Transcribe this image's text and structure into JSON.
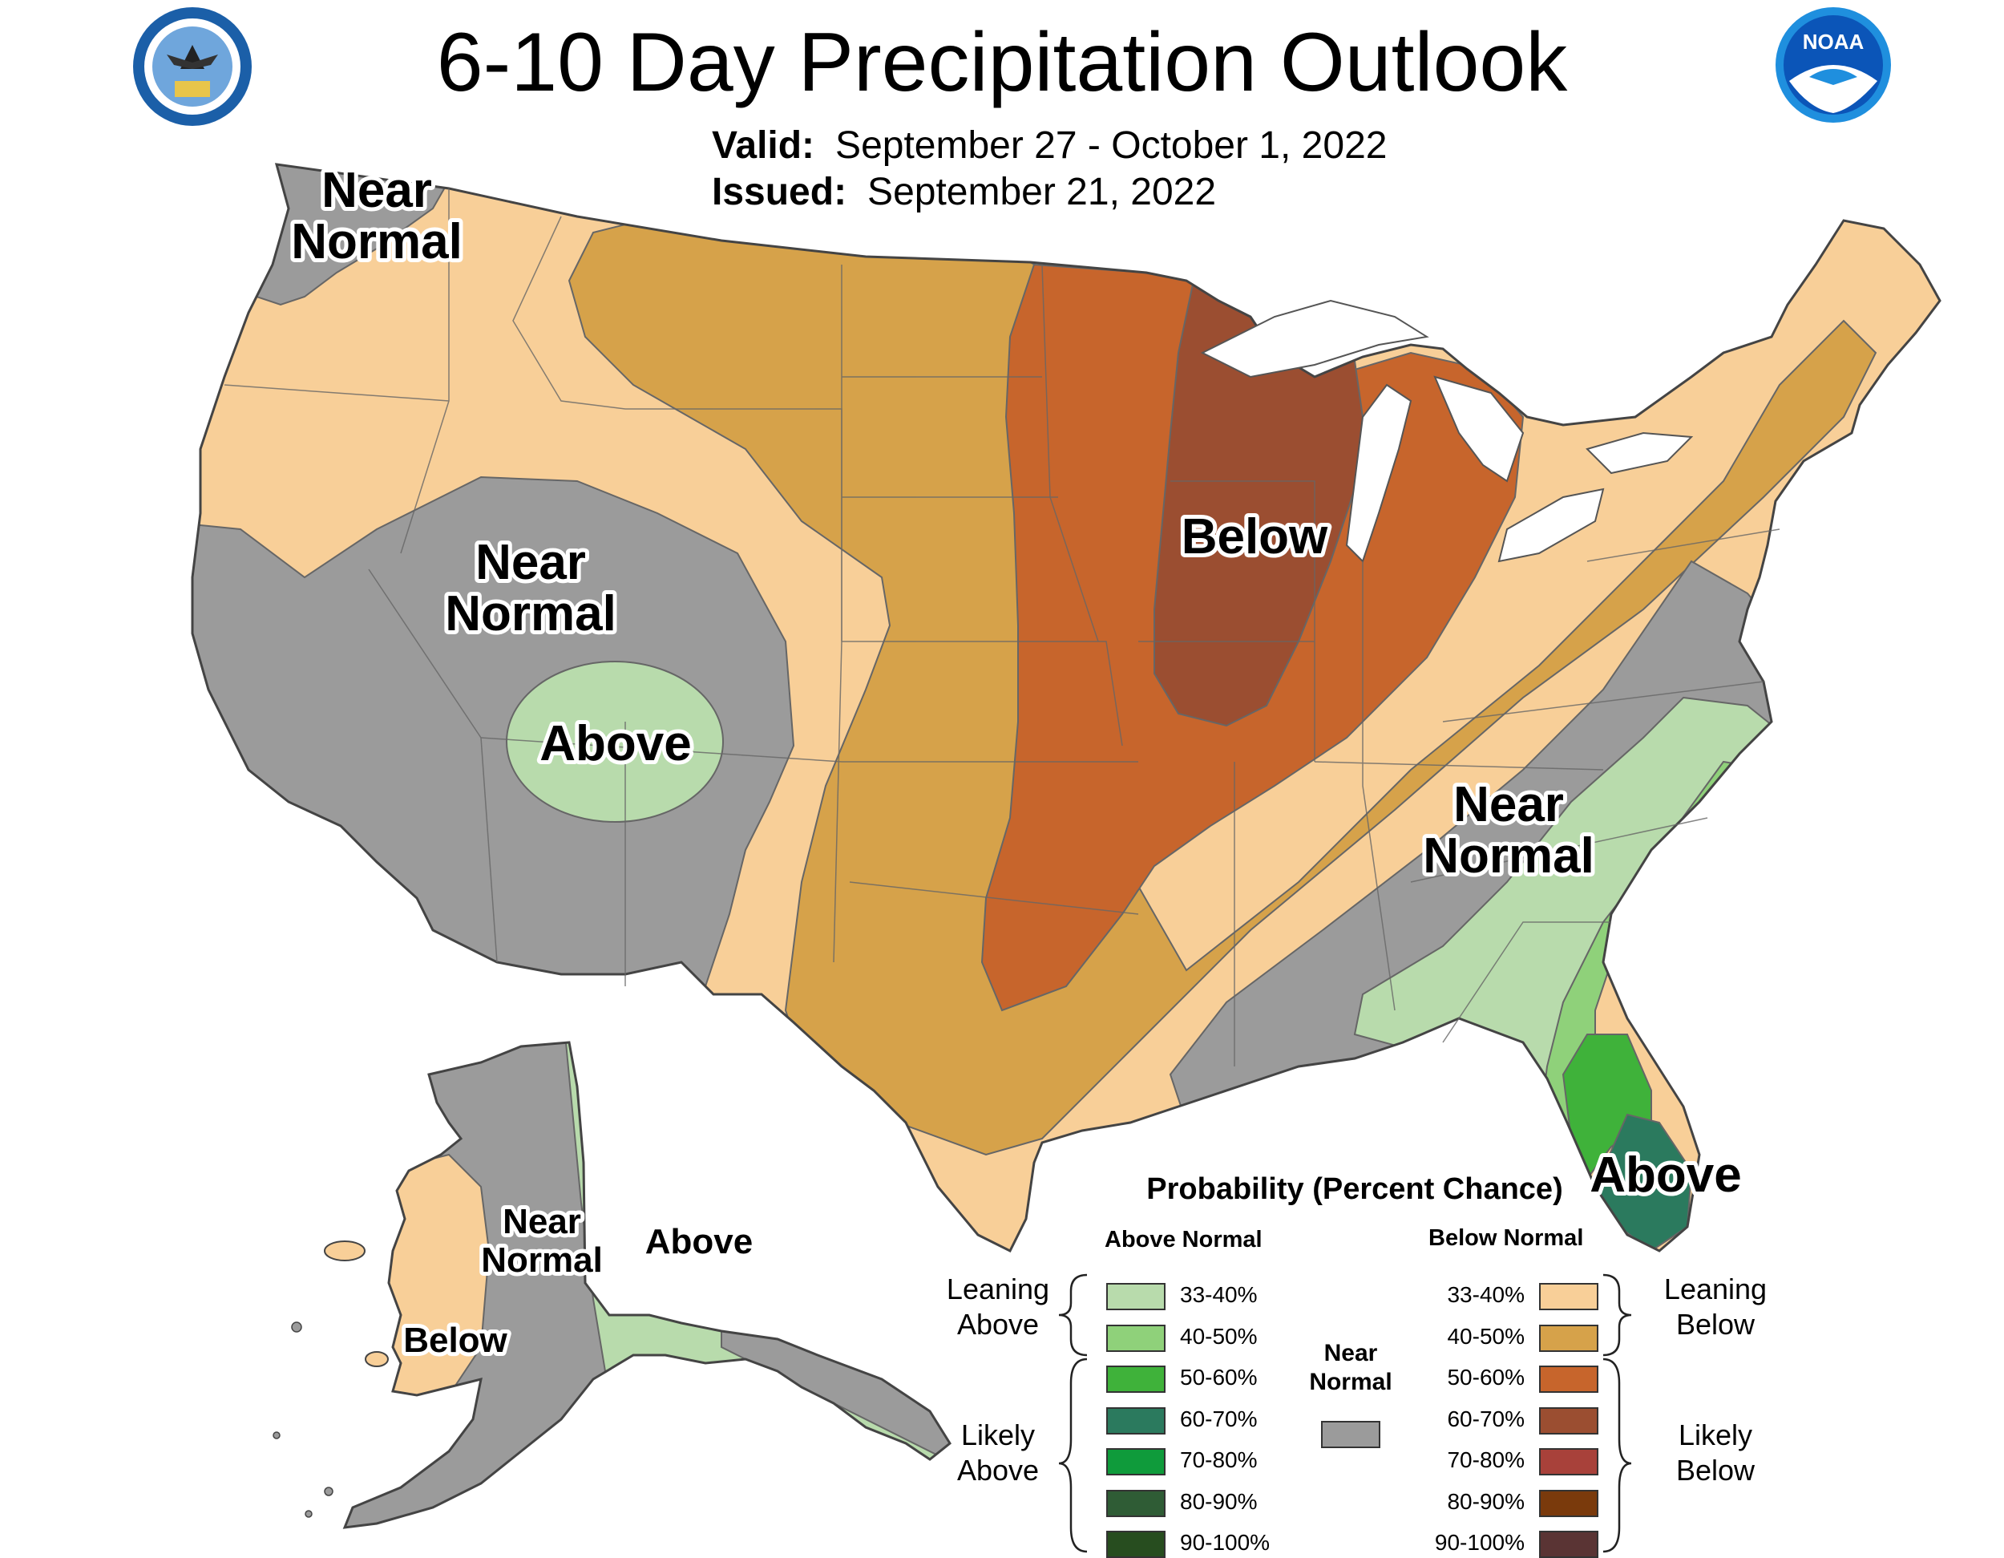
{
  "title": "6-10 Day Precipitation Outlook",
  "valid_label": "Valid:",
  "valid_value": "September 27 - October 1, 2022",
  "issued_label": "Issued:",
  "issued_value": "September 21, 2022",
  "logos": {
    "left": "DEPARTMENT OF COMMERCE · UNITED STATES OF AMERICA",
    "right": "NOAA"
  },
  "map_labels": {
    "nw_near_normal_1": "Near",
    "nw_near_normal_2": "Normal",
    "sw_near_normal_1": "Near",
    "sw_near_normal_2": "Normal",
    "sw_above": "Above",
    "midwest_below": "Below",
    "se_near_normal_1": "Near",
    "se_near_normal_2": "Normal",
    "fl_above": "Above",
    "ak_near_normal_1": "Near",
    "ak_near_normal_2": "Normal",
    "ak_above": "Above",
    "ak_below": "Below"
  },
  "legend": {
    "title": "Probability (Percent Chance)",
    "above_header": "Above Normal",
    "below_header": "Below Normal",
    "near_normal_1": "Near",
    "near_normal_2": "Normal",
    "near_color": "#9b9b9b",
    "leaning_above_1": "Leaning",
    "leaning_above_2": "Above",
    "likely_above_1": "Likely",
    "likely_above_2": "Above",
    "leaning_below_1": "Leaning",
    "leaning_below_2": "Below",
    "likely_below_1": "Likely",
    "likely_below_2": "Below",
    "above": [
      {
        "range": "33-40%",
        "color": "#b8dbac"
      },
      {
        "range": "40-50%",
        "color": "#8fd17a"
      },
      {
        "range": "50-60%",
        "color": "#3fb23a"
      },
      {
        "range": "60-70%",
        "color": "#2b7a5e"
      },
      {
        "range": "70-80%",
        "color": "#0f9b3b"
      },
      {
        "range": "80-90%",
        "color": "#2f5c35"
      },
      {
        "range": "90-100%",
        "color": "#274d1f"
      }
    ],
    "below": [
      {
        "range": "33-40%",
        "color": "#f8cf98"
      },
      {
        "range": "40-50%",
        "color": "#d6a24a"
      },
      {
        "range": "50-60%",
        "color": "#c7652c"
      },
      {
        "range": "60-70%",
        "color": "#9b4e31"
      },
      {
        "range": "70-80%",
        "color": "#a8413a"
      },
      {
        "range": "80-90%",
        "color": "#7a3a0c"
      },
      {
        "range": "90-100%",
        "color": "#5a3434"
      }
    ]
  }
}
